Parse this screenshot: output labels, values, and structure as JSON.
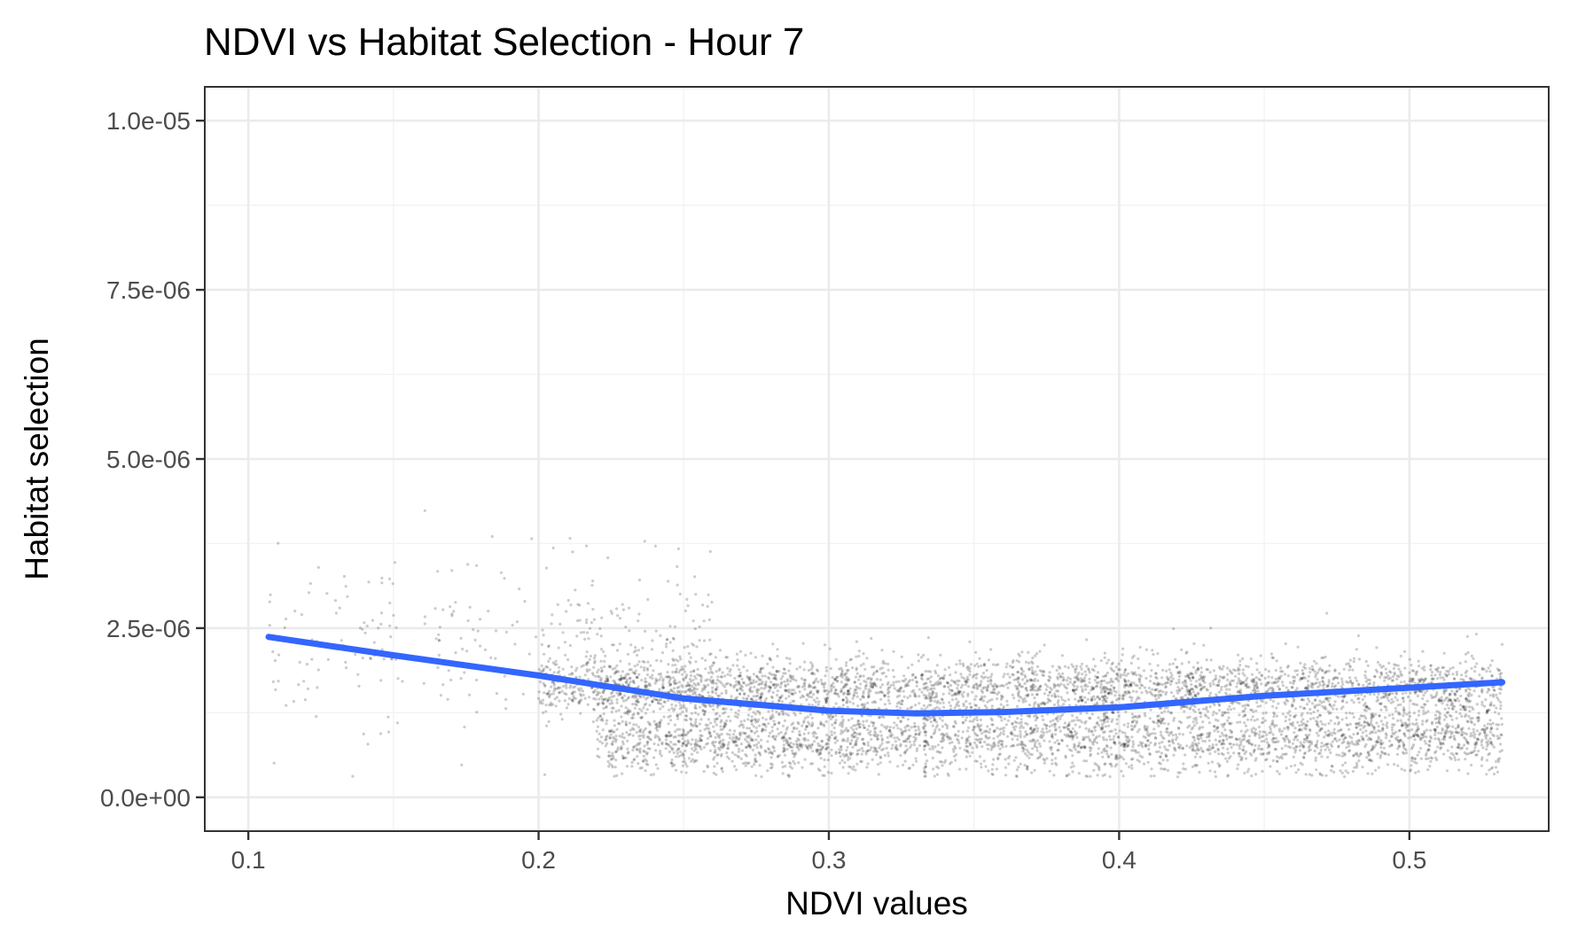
{
  "chart_data": {
    "type": "scatter",
    "title": "NDVI vs Habitat Selection - Hour 7",
    "xlabel": "NDVI values",
    "ylabel": "Habitat selection",
    "xlim": [
      0.085,
      0.548
    ],
    "ylim": [
      -5e-07,
      1.05e-05
    ],
    "x_ticks": [
      {
        "value": 0.1,
        "label": "0.1"
      },
      {
        "value": 0.2,
        "label": "0.2"
      },
      {
        "value": 0.3,
        "label": "0.3"
      },
      {
        "value": 0.4,
        "label": "0.4"
      },
      {
        "value": 0.5,
        "label": "0.5"
      }
    ],
    "y_ticks": [
      {
        "value": 0.0,
        "label": "0.0e+00"
      },
      {
        "value": 2.5e-06,
        "label": "2.5e-06"
      },
      {
        "value": 5e-06,
        "label": "5.0e-06"
      },
      {
        "value": 7.5e-06,
        "label": "7.5e-06"
      },
      {
        "value": 1e-05,
        "label": "1.0e-05"
      }
    ],
    "grid": true,
    "legend": "none",
    "point_color": "#000000",
    "point_alpha": 0.2,
    "smooth_color": "#3366FF",
    "point_clusters": [
      {
        "x_range": [
          0.107,
          0.2
        ],
        "y_center": 2.3e-06,
        "y_spread": 6.5e-07,
        "density": 0.25
      },
      {
        "x_range": [
          0.2,
          0.26
        ],
        "y_center": 2e-06,
        "y_spread": 7e-07,
        "density": 0.6
      },
      {
        "x_range": [
          0.2,
          0.532
        ],
        "y_center": 1.65e-06,
        "y_spread": 2e-07,
        "density": 1.0
      },
      {
        "x_range": [
          0.22,
          0.532
        ],
        "y_center": 8.5e-07,
        "y_spread": 2.5e-07,
        "density": 1.0
      },
      {
        "x_range": [
          0.22,
          0.532
        ],
        "y_center": 1.25e-06,
        "y_spread": 4.5e-07,
        "density": 0.8
      }
    ],
    "smooth_line": {
      "x": [
        0.107,
        0.15,
        0.2,
        0.25,
        0.3,
        0.33,
        0.36,
        0.4,
        0.45,
        0.5,
        0.532
      ],
      "y": [
        2.37e-06,
        2.1e-06,
        1.8e-06,
        1.46e-06,
        1.28e-06,
        1.24e-06,
        1.26e-06,
        1.33e-06,
        1.5e-06,
        1.62e-06,
        1.7e-06
      ]
    }
  }
}
